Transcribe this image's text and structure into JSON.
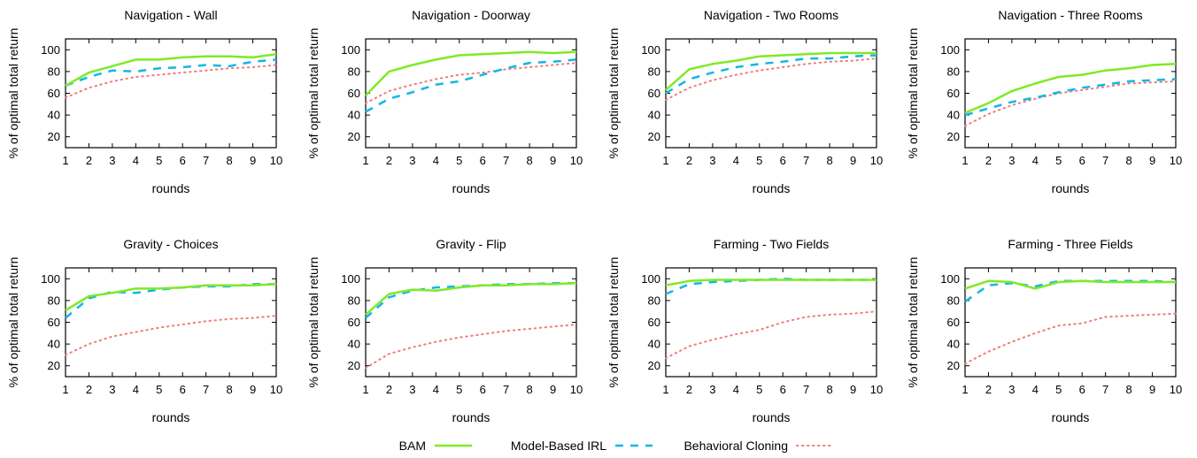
{
  "legend": {
    "items": [
      {
        "label": "BAM",
        "color": "#7fea26",
        "style": "solid"
      },
      {
        "label": "Model-Based IRL",
        "color": "#10b7e8",
        "style": "dashed"
      },
      {
        "label": "Behavioral Cloning",
        "color": "#ec7f7a",
        "style": "dotted"
      }
    ]
  },
  "chart_data": [
    {
      "type": "line",
      "title": "Navigation - Wall",
      "xlabel": "rounds",
      "ylabel": "% of optimal total return",
      "x": [
        1,
        2,
        3,
        4,
        5,
        6,
        7,
        8,
        9,
        10
      ],
      "xlim": [
        1,
        10
      ],
      "ylim": [
        10,
        110
      ],
      "xticks": [
        "1",
        "2",
        "3",
        "4",
        "5",
        "6",
        "7",
        "8",
        "9",
        "10"
      ],
      "yticks": [
        "20",
        "40",
        "60",
        "80",
        "100"
      ],
      "series": [
        {
          "name": "BAM",
          "values": [
            67,
            79,
            85,
            91,
            91,
            93,
            94,
            94,
            93,
            96
          ]
        },
        {
          "name": "Model-Based IRL",
          "values": [
            67,
            75,
            81,
            80,
            83,
            84,
            86,
            85,
            89,
            91
          ]
        },
        {
          "name": "Behavioral Cloning",
          "values": [
            56,
            65,
            71,
            75,
            77,
            79,
            81,
            83,
            84,
            86
          ]
        }
      ]
    },
    {
      "type": "line",
      "title": "Navigation - Doorway",
      "xlabel": "rounds",
      "ylabel": "% of optimal total return",
      "x": [
        1,
        2,
        3,
        4,
        5,
        6,
        7,
        8,
        9,
        10
      ],
      "xlim": [
        1,
        10
      ],
      "ylim": [
        10,
        110
      ],
      "xticks": [
        "1",
        "2",
        "3",
        "4",
        "5",
        "6",
        "7",
        "8",
        "9",
        "10"
      ],
      "yticks": [
        "20",
        "40",
        "60",
        "80",
        "100"
      ],
      "series": [
        {
          "name": "BAM",
          "values": [
            58,
            80,
            86,
            91,
            95,
            96,
            97,
            98,
            97,
            98
          ]
        },
        {
          "name": "Model-Based IRL",
          "values": [
            43,
            55,
            61,
            68,
            71,
            77,
            83,
            88,
            89,
            91
          ]
        },
        {
          "name": "Behavioral Cloning",
          "values": [
            51,
            62,
            68,
            73,
            77,
            79,
            82,
            84,
            86,
            88
          ]
        }
      ]
    },
    {
      "type": "line",
      "title": "Navigation - Two Rooms",
      "xlabel": "rounds",
      "ylabel": "% of optimal total return",
      "x": [
        1,
        2,
        3,
        4,
        5,
        6,
        7,
        8,
        9,
        10
      ],
      "xlim": [
        1,
        10
      ],
      "ylim": [
        10,
        110
      ],
      "xticks": [
        "1",
        "2",
        "3",
        "4",
        "5",
        "6",
        "7",
        "8",
        "9",
        "10"
      ],
      "yticks": [
        "20",
        "40",
        "60",
        "80",
        "100"
      ],
      "series": [
        {
          "name": "BAM",
          "values": [
            63,
            82,
            87,
            90,
            94,
            95,
            96,
            97,
            97,
            97
          ]
        },
        {
          "name": "Model-Based IRL",
          "values": [
            60,
            73,
            79,
            84,
            87,
            89,
            92,
            92,
            94,
            95
          ]
        },
        {
          "name": "Behavioral Cloning",
          "values": [
            54,
            65,
            72,
            77,
            81,
            84,
            87,
            89,
            90,
            92
          ]
        }
      ]
    },
    {
      "type": "line",
      "title": "Navigation - Three Rooms",
      "xlabel": "rounds",
      "ylabel": "% of optimal total return",
      "x": [
        1,
        2,
        3,
        4,
        5,
        6,
        7,
        8,
        9,
        10
      ],
      "xlim": [
        1,
        10
      ],
      "ylim": [
        10,
        110
      ],
      "xticks": [
        "1",
        "2",
        "3",
        "4",
        "5",
        "6",
        "7",
        "8",
        "9",
        "10"
      ],
      "yticks": [
        "20",
        "40",
        "60",
        "80",
        "100"
      ],
      "series": [
        {
          "name": "BAM",
          "values": [
            42,
            51,
            62,
            69,
            75,
            77,
            81,
            83,
            86,
            87
          ]
        },
        {
          "name": "Model-Based IRL",
          "values": [
            40,
            46,
            52,
            56,
            61,
            65,
            68,
            71,
            72,
            73
          ]
        },
        {
          "name": "Behavioral Cloning",
          "values": [
            30,
            41,
            49,
            55,
            60,
            63,
            66,
            69,
            70,
            71
          ]
        }
      ]
    },
    {
      "type": "line",
      "title": "Gravity - Choices",
      "xlabel": "rounds",
      "ylabel": "% of optimal total return",
      "x": [
        1,
        2,
        3,
        4,
        5,
        6,
        7,
        8,
        9,
        10
      ],
      "xlim": [
        1,
        10
      ],
      "ylim": [
        10,
        110
      ],
      "xticks": [
        "1",
        "2",
        "3",
        "4",
        "5",
        "6",
        "7",
        "8",
        "9",
        "10"
      ],
      "yticks": [
        "20",
        "40",
        "60",
        "80",
        "100"
      ],
      "series": [
        {
          "name": "BAM",
          "values": [
            71,
            84,
            87,
            91,
            91,
            92,
            94,
            94,
            94,
            95
          ]
        },
        {
          "name": "Model-Based IRL",
          "values": [
            64,
            82,
            88,
            87,
            90,
            92,
            93,
            93,
            95,
            95
          ]
        },
        {
          "name": "Behavioral Cloning",
          "values": [
            30,
            40,
            47,
            51,
            55,
            58,
            61,
            63,
            64,
            66
          ]
        }
      ]
    },
    {
      "type": "line",
      "title": "Gravity - Flip",
      "xlabel": "rounds",
      "ylabel": "% of optimal total return",
      "x": [
        1,
        2,
        3,
        4,
        5,
        6,
        7,
        8,
        9,
        10
      ],
      "xlim": [
        1,
        10
      ],
      "ylim": [
        10,
        110
      ],
      "xticks": [
        "1",
        "2",
        "3",
        "4",
        "5",
        "6",
        "7",
        "8",
        "9",
        "10"
      ],
      "yticks": [
        "20",
        "40",
        "60",
        "80",
        "100"
      ],
      "series": [
        {
          "name": "BAM",
          "values": [
            67,
            86,
            90,
            89,
            92,
            94,
            94,
            95,
            95,
            96
          ]
        },
        {
          "name": "Model-Based IRL",
          "values": [
            64,
            83,
            89,
            92,
            93,
            94,
            95,
            95,
            96,
            96
          ]
        },
        {
          "name": "Behavioral Cloning",
          "values": [
            18,
            31,
            37,
            42,
            46,
            49,
            52,
            54,
            56,
            58
          ]
        }
      ]
    },
    {
      "type": "line",
      "title": "Farming - Two Fields",
      "xlabel": "rounds",
      "ylabel": "% of optimal total return",
      "x": [
        1,
        2,
        3,
        4,
        5,
        6,
        7,
        8,
        9,
        10
      ],
      "xlim": [
        1,
        10
      ],
      "ylim": [
        10,
        110
      ],
      "xticks": [
        "1",
        "2",
        "3",
        "4",
        "5",
        "6",
        "7",
        "8",
        "9",
        "10"
      ],
      "yticks": [
        "20",
        "40",
        "60",
        "80",
        "100"
      ],
      "series": [
        {
          "name": "BAM",
          "values": [
            94,
            98,
            99,
            99,
            99,
            99,
            99,
            99,
            99,
            99
          ]
        },
        {
          "name": "Model-Based IRL",
          "values": [
            86,
            95,
            97,
            98,
            99,
            100,
            99,
            99,
            99,
            99
          ]
        },
        {
          "name": "Behavioral Cloning",
          "values": [
            27,
            38,
            44,
            49,
            53,
            60,
            65,
            67,
            68,
            70
          ]
        }
      ]
    },
    {
      "type": "line",
      "title": "Farming - Three Fields",
      "xlabel": "rounds",
      "ylabel": "% of optimal total return",
      "x": [
        1,
        2,
        3,
        4,
        5,
        6,
        7,
        8,
        9,
        10
      ],
      "xlim": [
        1,
        10
      ],
      "ylim": [
        10,
        110
      ],
      "xticks": [
        "1",
        "2",
        "3",
        "4",
        "5",
        "6",
        "7",
        "8",
        "9",
        "10"
      ],
      "yticks": [
        "20",
        "40",
        "60",
        "80",
        "100"
      ],
      "series": [
        {
          "name": "BAM",
          "values": [
            91,
            98,
            97,
            91,
            97,
            98,
            97,
            97,
            97,
            97
          ]
        },
        {
          "name": "Model-Based IRL",
          "values": [
            79,
            94,
            96,
            93,
            98,
            98,
            98,
            98,
            98,
            97
          ]
        },
        {
          "name": "Behavioral Cloning",
          "values": [
            22,
            33,
            42,
            50,
            57,
            59,
            65,
            66,
            67,
            68
          ]
        }
      ]
    }
  ]
}
